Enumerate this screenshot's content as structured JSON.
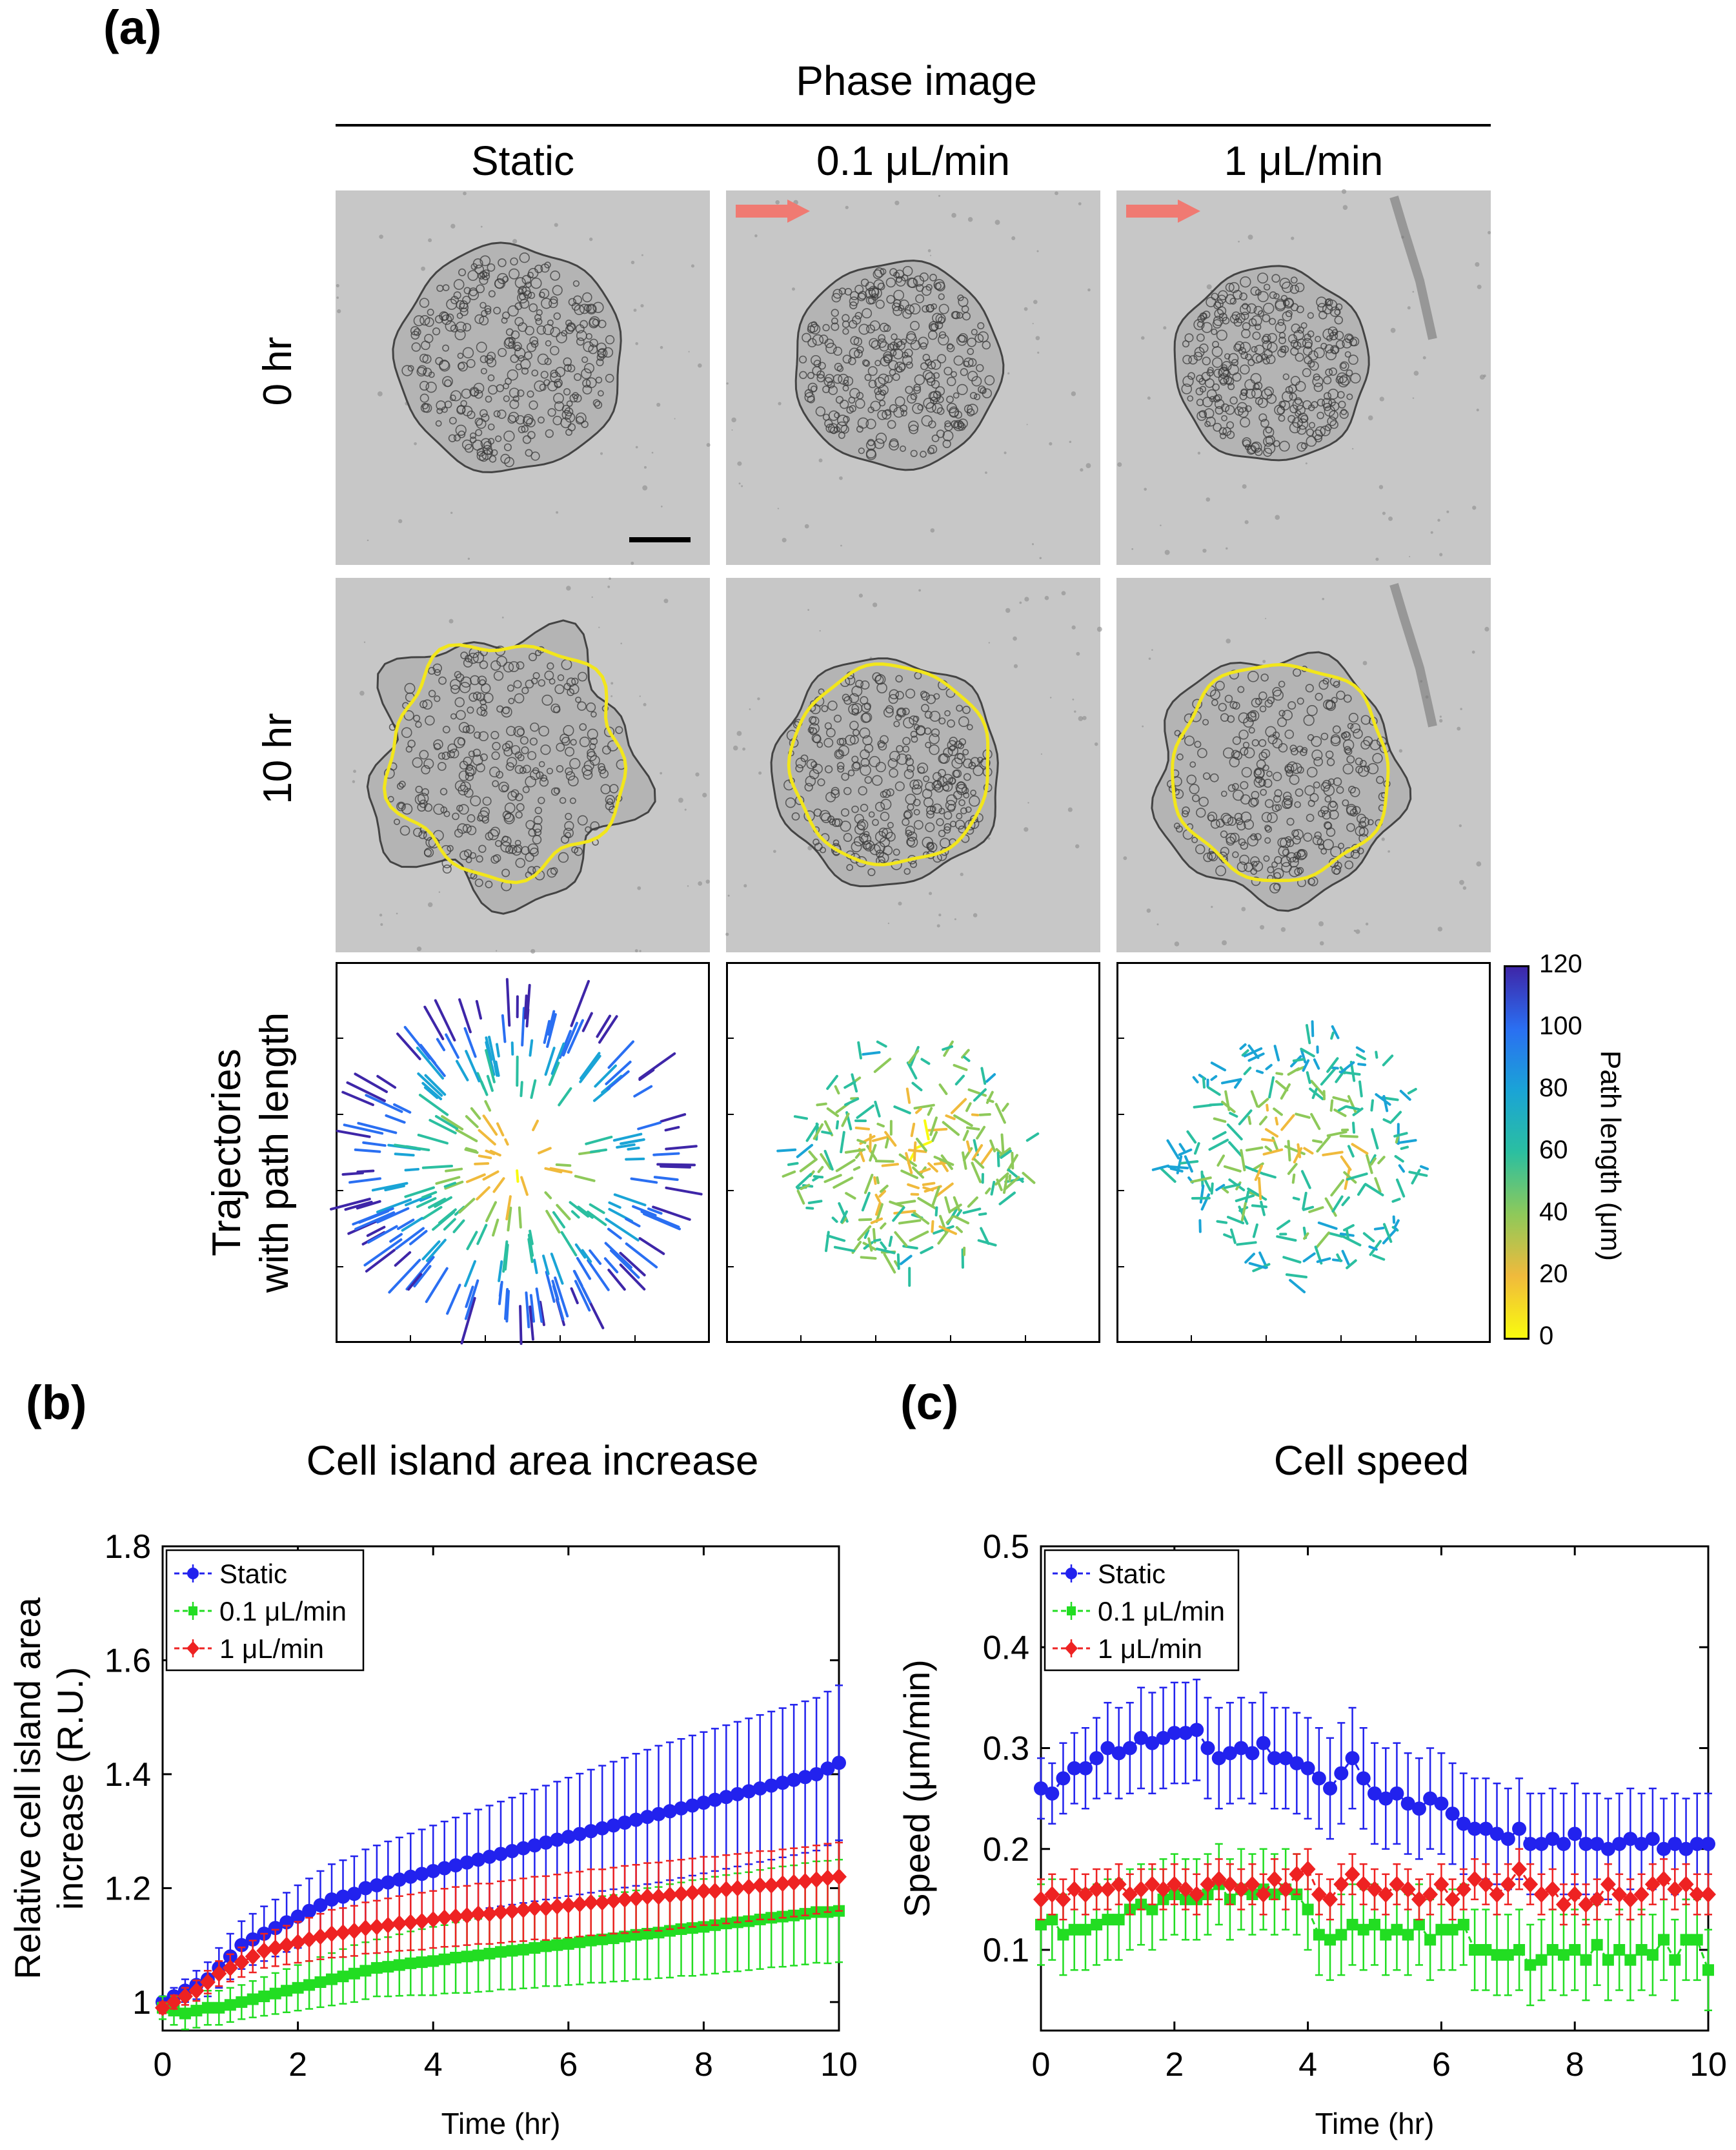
{
  "panel_a": {
    "letter": "(a)",
    "header": "Phase image",
    "columns": [
      "Static",
      "0.1 μL/min",
      "1 μL/min"
    ],
    "rows": [
      "0 hr",
      "10 hr",
      "Trajectories\nwith path length"
    ],
    "row_lines": [
      "Trajectories",
      "with path length"
    ],
    "colorbar": {
      "label": "Path length (μm)",
      "ticks": [
        "120",
        "100",
        "80",
        "60",
        "40",
        "20",
        "0"
      ],
      "colors": [
        "#3e26a8",
        "#2a6ff2",
        "#1aa4d6",
        "#2bbfa0",
        "#8ec95a",
        "#f0ba3c",
        "#f9fb0e"
      ]
    },
    "flow_arrow_color": "#f07a72",
    "outline_color": "#f2e61b"
  },
  "chart_data": [
    {
      "type": "line",
      "letter": "(b)",
      "title": "Cell island area increase",
      "xlabel": "Time (hr)",
      "ylabel": "Relative cell island area increase (R.U.)",
      "ylabel_lines": [
        "Relative cell island area",
        "increase (R.U.)"
      ],
      "xlim": [
        0,
        10
      ],
      "ylim": [
        0.95,
        1.8
      ],
      "xticks": [
        "0",
        "2",
        "4",
        "6",
        "8",
        "10"
      ],
      "yticks": [
        "1",
        "1.2",
        "1.4",
        "1.6",
        "1.8"
      ],
      "x": [
        0,
        0.167,
        0.333,
        0.5,
        0.667,
        0.833,
        1,
        1.167,
        1.333,
        1.5,
        1.667,
        1.833,
        2,
        2.167,
        2.333,
        2.5,
        2.667,
        2.833,
        3,
        3.167,
        3.333,
        3.5,
        3.667,
        3.833,
        4,
        4.167,
        4.333,
        4.5,
        4.667,
        4.833,
        5,
        5.167,
        5.333,
        5.5,
        5.667,
        5.833,
        6,
        6.167,
        6.333,
        6.5,
        6.667,
        6.833,
        7,
        7.167,
        7.333,
        7.5,
        7.667,
        7.833,
        8,
        8.167,
        8.333,
        8.5,
        8.667,
        8.833,
        9,
        9.167,
        9.333,
        9.5,
        9.667,
        9.833,
        10
      ],
      "series": [
        {
          "name": "Static",
          "color": "#2222ee",
          "values": [
            1.0,
            1.01,
            1.02,
            1.03,
            1.04,
            1.06,
            1.08,
            1.1,
            1.11,
            1.12,
            1.13,
            1.14,
            1.15,
            1.16,
            1.17,
            1.18,
            1.185,
            1.19,
            1.2,
            1.205,
            1.21,
            1.215,
            1.22,
            1.225,
            1.23,
            1.235,
            1.24,
            1.245,
            1.25,
            1.255,
            1.26,
            1.265,
            1.27,
            1.275,
            1.28,
            1.285,
            1.29,
            1.295,
            1.3,
            1.305,
            1.31,
            1.315,
            1.32,
            1.325,
            1.33,
            1.335,
            1.34,
            1.345,
            1.35,
            1.355,
            1.36,
            1.365,
            1.37,
            1.375,
            1.38,
            1.385,
            1.39,
            1.395,
            1.4,
            1.41,
            1.42
          ],
          "errors": [
            0.01,
            0.015,
            0.02,
            0.025,
            0.03,
            0.035,
            0.04,
            0.042,
            0.045,
            0.048,
            0.05,
            0.052,
            0.055,
            0.057,
            0.06,
            0.062,
            0.064,
            0.066,
            0.068,
            0.07,
            0.072,
            0.074,
            0.076,
            0.078,
            0.08,
            0.082,
            0.084,
            0.086,
            0.088,
            0.09,
            0.092,
            0.094,
            0.096,
            0.098,
            0.1,
            0.102,
            0.104,
            0.106,
            0.108,
            0.11,
            0.112,
            0.114,
            0.116,
            0.118,
            0.12,
            0.121,
            0.122,
            0.123,
            0.124,
            0.125,
            0.126,
            0.127,
            0.128,
            0.129,
            0.13,
            0.131,
            0.132,
            0.133,
            0.134,
            0.135,
            0.136
          ]
        },
        {
          "name": "0.1 μL/min",
          "color": "#22dd22",
          "values": [
            0.99,
            0.985,
            0.98,
            0.985,
            0.99,
            0.99,
            0.995,
            1.0,
            1.005,
            1.01,
            1.015,
            1.02,
            1.025,
            1.03,
            1.035,
            1.04,
            1.045,
            1.05,
            1.055,
            1.06,
            1.062,
            1.065,
            1.068,
            1.07,
            1.072,
            1.075,
            1.078,
            1.08,
            1.082,
            1.085,
            1.088,
            1.09,
            1.092,
            1.095,
            1.098,
            1.1,
            1.102,
            1.105,
            1.108,
            1.11,
            1.112,
            1.115,
            1.118,
            1.12,
            1.122,
            1.125,
            1.128,
            1.13,
            1.132,
            1.135,
            1.138,
            1.14,
            1.142,
            1.145,
            1.148,
            1.15,
            1.152,
            1.155,
            1.158,
            1.158,
            1.16
          ],
          "errors": [
            0.02,
            0.025,
            0.028,
            0.03,
            0.03,
            0.03,
            0.03,
            0.03,
            0.032,
            0.034,
            0.036,
            0.038,
            0.04,
            0.042,
            0.044,
            0.046,
            0.048,
            0.05,
            0.05,
            0.05,
            0.052,
            0.054,
            0.056,
            0.058,
            0.06,
            0.06,
            0.062,
            0.064,
            0.064,
            0.066,
            0.066,
            0.068,
            0.068,
            0.07,
            0.07,
            0.072,
            0.072,
            0.074,
            0.074,
            0.076,
            0.076,
            0.078,
            0.078,
            0.08,
            0.08,
            0.082,
            0.082,
            0.084,
            0.084,
            0.085,
            0.085,
            0.086,
            0.086,
            0.087,
            0.087,
            0.088,
            0.088,
            0.089,
            0.089,
            0.09,
            0.09
          ]
        },
        {
          "name": "1 μL/min",
          "color": "#ee2222",
          "values": [
            0.99,
            1.0,
            1.01,
            1.02,
            1.035,
            1.05,
            1.06,
            1.07,
            1.08,
            1.09,
            1.095,
            1.1,
            1.105,
            1.11,
            1.115,
            1.12,
            1.122,
            1.125,
            1.13,
            1.132,
            1.135,
            1.138,
            1.14,
            1.142,
            1.145,
            1.148,
            1.15,
            1.152,
            1.155,
            1.155,
            1.158,
            1.16,
            1.162,
            1.165,
            1.165,
            1.168,
            1.17,
            1.172,
            1.175,
            1.175,
            1.178,
            1.18,
            1.182,
            1.185,
            1.185,
            1.188,
            1.19,
            1.192,
            1.195,
            1.195,
            1.198,
            1.2,
            1.202,
            1.205,
            1.205,
            1.208,
            1.21,
            1.212,
            1.215,
            1.218,
            1.22
          ],
          "errors": [
            0.01,
            0.012,
            0.015,
            0.018,
            0.02,
            0.022,
            0.024,
            0.026,
            0.028,
            0.03,
            0.032,
            0.034,
            0.036,
            0.038,
            0.04,
            0.042,
            0.043,
            0.044,
            0.045,
            0.046,
            0.047,
            0.048,
            0.049,
            0.05,
            0.05,
            0.051,
            0.052,
            0.052,
            0.053,
            0.053,
            0.054,
            0.054,
            0.055,
            0.055,
            0.056,
            0.056,
            0.057,
            0.057,
            0.058,
            0.058,
            0.058,
            0.059,
            0.059,
            0.059,
            0.06,
            0.06,
            0.06,
            0.06,
            0.06,
            0.06,
            0.06,
            0.06,
            0.06,
            0.06,
            0.06,
            0.06,
            0.06,
            0.06,
            0.06,
            0.06,
            0.06
          ]
        }
      ]
    },
    {
      "type": "line",
      "letter": "(c)",
      "title": "Cell speed",
      "xlabel": "Time (hr)",
      "ylabel": "Speed (μm/min)",
      "xlim": [
        0,
        10
      ],
      "ylim": [
        0.02,
        0.5
      ],
      "xticks": [
        "0",
        "2",
        "4",
        "6",
        "8",
        "10"
      ],
      "yticks": [
        "0.1",
        "0.2",
        "0.3",
        "0.4",
        "0.5"
      ],
      "x": [
        0,
        0.167,
        0.333,
        0.5,
        0.667,
        0.833,
        1,
        1.167,
        1.333,
        1.5,
        1.667,
        1.833,
        2,
        2.167,
        2.333,
        2.5,
        2.667,
        2.833,
        3,
        3.167,
        3.333,
        3.5,
        3.667,
        3.833,
        4,
        4.167,
        4.333,
        4.5,
        4.667,
        4.833,
        5,
        5.167,
        5.333,
        5.5,
        5.667,
        5.833,
        6,
        6.167,
        6.333,
        6.5,
        6.667,
        6.833,
        7,
        7.167,
        7.333,
        7.5,
        7.667,
        7.833,
        8,
        8.167,
        8.333,
        8.5,
        8.667,
        8.833,
        9,
        9.167,
        9.333,
        9.5,
        9.667,
        9.833,
        10
      ],
      "series": [
        {
          "name": "Static",
          "color": "#2222ee",
          "values": [
            0.26,
            0.255,
            0.27,
            0.28,
            0.28,
            0.29,
            0.3,
            0.295,
            0.3,
            0.31,
            0.305,
            0.31,
            0.315,
            0.315,
            0.318,
            0.3,
            0.29,
            0.295,
            0.3,
            0.295,
            0.305,
            0.29,
            0.29,
            0.285,
            0.28,
            0.27,
            0.26,
            0.275,
            0.29,
            0.27,
            0.255,
            0.25,
            0.255,
            0.245,
            0.24,
            0.25,
            0.245,
            0.235,
            0.225,
            0.22,
            0.22,
            0.215,
            0.21,
            0.22,
            0.205,
            0.205,
            0.21,
            0.205,
            0.215,
            0.205,
            0.205,
            0.2,
            0.205,
            0.21,
            0.205,
            0.21,
            0.2,
            0.205,
            0.2,
            0.205,
            0.205
          ],
          "errors": [
            0.03,
            0.03,
            0.035,
            0.035,
            0.04,
            0.04,
            0.045,
            0.045,
            0.045,
            0.05,
            0.05,
            0.05,
            0.05,
            0.05,
            0.05,
            0.05,
            0.05,
            0.05,
            0.05,
            0.05,
            0.05,
            0.05,
            0.05,
            0.05,
            0.05,
            0.05,
            0.05,
            0.05,
            0.05,
            0.05,
            0.05,
            0.05,
            0.05,
            0.05,
            0.05,
            0.05,
            0.05,
            0.05,
            0.05,
            0.05,
            0.05,
            0.05,
            0.05,
            0.05,
            0.05,
            0.05,
            0.05,
            0.05,
            0.05,
            0.05,
            0.05,
            0.05,
            0.05,
            0.05,
            0.05,
            0.05,
            0.05,
            0.05,
            0.05,
            0.05,
            0.05
          ]
        },
        {
          "name": "0.1 μL/min",
          "color": "#22dd22",
          "values": [
            0.125,
            0.13,
            0.115,
            0.12,
            0.12,
            0.125,
            0.13,
            0.13,
            0.14,
            0.145,
            0.14,
            0.15,
            0.155,
            0.15,
            0.15,
            0.155,
            0.165,
            0.15,
            0.16,
            0.155,
            0.16,
            0.155,
            0.16,
            0.155,
            0.14,
            0.115,
            0.11,
            0.115,
            0.125,
            0.12,
            0.125,
            0.115,
            0.12,
            0.115,
            0.125,
            0.11,
            0.12,
            0.12,
            0.125,
            0.1,
            0.1,
            0.095,
            0.095,
            0.1,
            0.085,
            0.09,
            0.1,
            0.095,
            0.1,
            0.09,
            0.105,
            0.09,
            0.1,
            0.09,
            0.1,
            0.095,
            0.11,
            0.09,
            0.11,
            0.11,
            0.08
          ],
          "errors": [
            0.04,
            0.04,
            0.04,
            0.04,
            0.04,
            0.04,
            0.04,
            0.04,
            0.04,
            0.04,
            0.04,
            0.04,
            0.04,
            0.04,
            0.04,
            0.04,
            0.04,
            0.04,
            0.04,
            0.04,
            0.04,
            0.04,
            0.04,
            0.04,
            0.04,
            0.04,
            0.04,
            0.04,
            0.04,
            0.04,
            0.04,
            0.04,
            0.04,
            0.04,
            0.04,
            0.04,
            0.04,
            0.04,
            0.04,
            0.04,
            0.04,
            0.04,
            0.04,
            0.04,
            0.04,
            0.04,
            0.04,
            0.04,
            0.04,
            0.04,
            0.04,
            0.04,
            0.04,
            0.04,
            0.04,
            0.04,
            0.04,
            0.04,
            0.04,
            0.04,
            0.04
          ]
        },
        {
          "name": "1 μL/min",
          "color": "#ee2222",
          "values": [
            0.15,
            0.155,
            0.15,
            0.16,
            0.155,
            0.16,
            0.16,
            0.165,
            0.155,
            0.16,
            0.165,
            0.16,
            0.165,
            0.16,
            0.155,
            0.165,
            0.17,
            0.165,
            0.16,
            0.165,
            0.155,
            0.17,
            0.16,
            0.175,
            0.18,
            0.155,
            0.15,
            0.165,
            0.175,
            0.165,
            0.16,
            0.155,
            0.165,
            0.16,
            0.15,
            0.155,
            0.165,
            0.15,
            0.16,
            0.17,
            0.165,
            0.155,
            0.165,
            0.18,
            0.165,
            0.155,
            0.16,
            0.145,
            0.155,
            0.145,
            0.15,
            0.165,
            0.155,
            0.15,
            0.155,
            0.165,
            0.17,
            0.16,
            0.165,
            0.155,
            0.155
          ],
          "errors": [
            0.02,
            0.02,
            0.02,
            0.02,
            0.02,
            0.02,
            0.02,
            0.02,
            0.02,
            0.02,
            0.02,
            0.02,
            0.02,
            0.02,
            0.02,
            0.02,
            0.02,
            0.02,
            0.02,
            0.02,
            0.02,
            0.02,
            0.02,
            0.02,
            0.02,
            0.02,
            0.02,
            0.02,
            0.02,
            0.02,
            0.02,
            0.02,
            0.02,
            0.02,
            0.02,
            0.02,
            0.02,
            0.02,
            0.02,
            0.02,
            0.02,
            0.02,
            0.02,
            0.02,
            0.02,
            0.02,
            0.02,
            0.02,
            0.02,
            0.02,
            0.02,
            0.02,
            0.02,
            0.02,
            0.02,
            0.02,
            0.02,
            0.02,
            0.02,
            0.02,
            0.02
          ]
        }
      ]
    }
  ]
}
